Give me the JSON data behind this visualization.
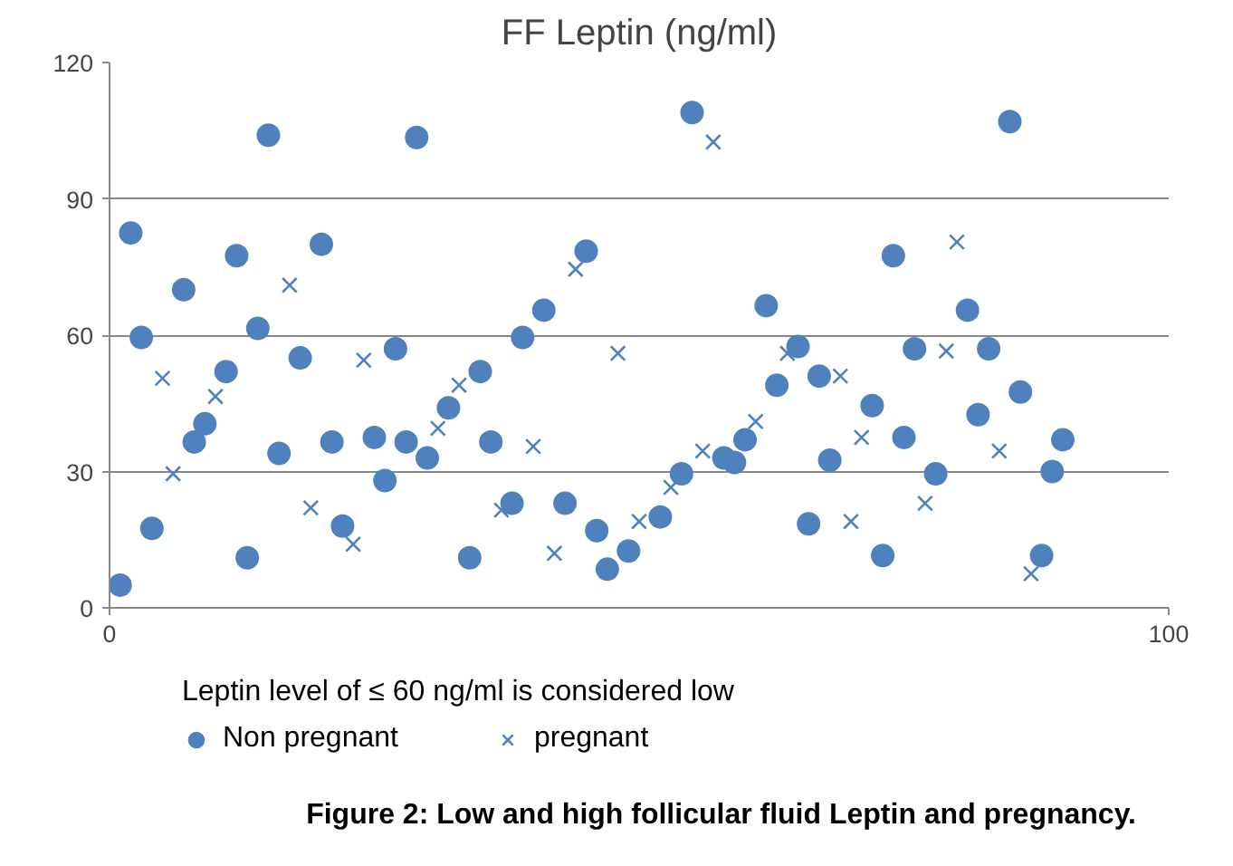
{
  "chart_data": {
    "type": "scatter",
    "title": "FF Leptin (ng/ml)",
    "series": [
      {
        "name": "Non pregnant",
        "color": "#4f81bd",
        "marker": "circle",
        "x": [
          1,
          2,
          3,
          4,
          7,
          8,
          9,
          11,
          12,
          13,
          14,
          15,
          16,
          18,
          20,
          21,
          22,
          25,
          26,
          27,
          28,
          29,
          30,
          32,
          34,
          35,
          36,
          38,
          39,
          41,
          43,
          45,
          46,
          47,
          49,
          52,
          54,
          55,
          58,
          59,
          60,
          62,
          63,
          65,
          66,
          67,
          68,
          72,
          73,
          74,
          75,
          76,
          78,
          81,
          82,
          83,
          85,
          86,
          88,
          89,
          90
        ],
        "values": [
          5,
          82.5,
          59.5,
          17.5,
          70,
          36.5,
          40.5,
          52,
          77.5,
          11,
          61.5,
          104,
          34,
          55,
          80,
          36.5,
          18,
          37.5,
          28,
          57,
          36.5,
          103.5,
          33,
          44,
          11,
          52,
          36.5,
          23,
          59.5,
          65.5,
          23,
          78.5,
          17,
          8.5,
          12.5,
          20,
          29.5,
          109,
          33,
          32,
          37,
          66.5,
          49,
          57.5,
          18.5,
          51,
          32.5,
          44.5,
          11.5,
          77.5,
          37.5,
          57,
          29.5,
          65.5,
          42.5,
          57,
          107,
          47.5,
          11.5,
          30,
          37
        ]
      },
      {
        "name": "pregnant",
        "color": "#4f81bd",
        "marker": "cross",
        "x": [
          5,
          6,
          10,
          17,
          19,
          23,
          24,
          31,
          33,
          37,
          40,
          42,
          44,
          48,
          50,
          53,
          56,
          57,
          61,
          64,
          69,
          70,
          71,
          77,
          79,
          80,
          84,
          87
        ],
        "values": [
          50.5,
          29.5,
          46.5,
          71,
          22,
          14,
          54.5,
          39.5,
          49,
          21.5,
          35.5,
          12,
          74.5,
          56,
          19,
          26.5,
          34.5,
          102.5,
          41,
          56,
          51,
          19,
          37.5,
          23,
          56.5,
          80.5,
          34.5,
          7.5
        ]
      }
    ],
    "xlim": [
      0,
      100
    ],
    "xticks": [
      0,
      100
    ],
    "ylim": [
      0,
      120
    ],
    "yticks": [
      0,
      30,
      60,
      90,
      120
    ],
    "grid": "y",
    "legend": "bottom",
    "annotations": [
      "Leptin level of ≤ 60 ng/ml is considered low",
      "Figure 2:  Low and high follicular fluid Leptin and pregnancy."
    ]
  }
}
